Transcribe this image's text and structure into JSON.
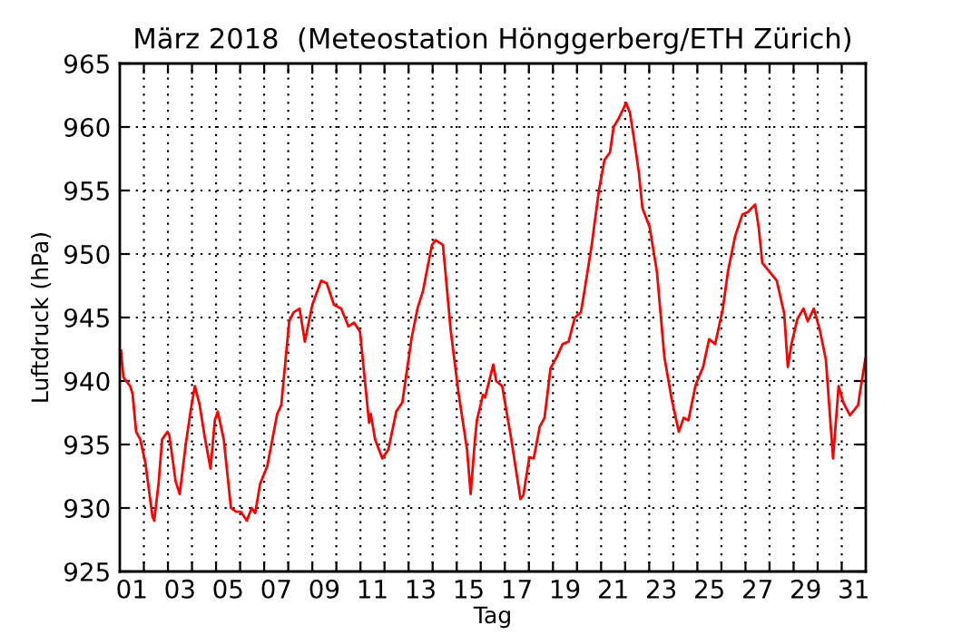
{
  "chart_data": {
    "type": "line",
    "title": "März 2018  (Meteostation Hönggerberg/ETH Zürich)",
    "xlabel": "Tag",
    "ylabel": "Luftdruck (hPa)",
    "xlim": [
      1,
      32
    ],
    "ylim": [
      925,
      965
    ],
    "yticks": [
      925,
      930,
      935,
      940,
      945,
      950,
      955,
      960,
      965
    ],
    "xticks": [
      {
        "value": 1.5,
        "label": "01"
      },
      {
        "value": 3.5,
        "label": "03"
      },
      {
        "value": 5.5,
        "label": "05"
      },
      {
        "value": 7.5,
        "label": "07"
      },
      {
        "value": 9.5,
        "label": "09"
      },
      {
        "value": 11.5,
        "label": "11"
      },
      {
        "value": 13.5,
        "label": "13"
      },
      {
        "value": 15.5,
        "label": "15"
      },
      {
        "value": 17.5,
        "label": "17"
      },
      {
        "value": 19.5,
        "label": "19"
      },
      {
        "value": 21.5,
        "label": "21"
      },
      {
        "value": 23.5,
        "label": "23"
      },
      {
        "value": 25.5,
        "label": "25"
      },
      {
        "value": 27.5,
        "label": "27"
      },
      {
        "value": 29.5,
        "label": "29"
      },
      {
        "value": 31.5,
        "label": "31"
      },
      {
        "value": 2,
        "label": null
      },
      {
        "value": 3,
        "label": null
      },
      {
        "value": 4,
        "label": null
      },
      {
        "value": 5,
        "label": null
      },
      {
        "value": 6,
        "label": null
      },
      {
        "value": 7,
        "label": null
      },
      {
        "value": 8,
        "label": null
      },
      {
        "value": 9,
        "label": null
      },
      {
        "value": 10,
        "label": null
      },
      {
        "value": 11,
        "label": null
      },
      {
        "value": 12,
        "label": null
      },
      {
        "value": 13,
        "label": null
      },
      {
        "value": 14,
        "label": null
      },
      {
        "value": 15,
        "label": null
      },
      {
        "value": 16,
        "label": null
      },
      {
        "value": 17,
        "label": null
      },
      {
        "value": 18,
        "label": null
      },
      {
        "value": 19,
        "label": null
      },
      {
        "value": 20,
        "label": null
      },
      {
        "value": 21,
        "label": null
      },
      {
        "value": 22,
        "label": null
      },
      {
        "value": 23,
        "label": null
      },
      {
        "value": 24,
        "label": null
      },
      {
        "value": 25,
        "label": null
      },
      {
        "value": 26,
        "label": null
      },
      {
        "value": 27,
        "label": null
      },
      {
        "value": 28,
        "label": null
      },
      {
        "value": 29,
        "label": null
      },
      {
        "value": 30,
        "label": null
      },
      {
        "value": 31,
        "label": null
      }
    ],
    "grid": true,
    "series": [
      {
        "color": "#ff0000",
        "x": [
          1.05,
          1.15,
          1.43,
          1.53,
          1.68,
          1.85,
          2.06,
          2.36,
          2.43,
          2.61,
          2.76,
          2.98,
          3.06,
          3.32,
          3.49,
          3.74,
          3.94,
          4.12,
          4.32,
          4.52,
          4.77,
          4.95,
          5.07,
          5.32,
          5.62,
          5.83,
          6.03,
          6.28,
          6.48,
          6.63,
          6.83,
          7.13,
          7.54,
          7.71,
          8.04,
          8.22,
          8.47,
          8.69,
          9.0,
          9.37,
          9.6,
          9.9,
          10.2,
          10.5,
          10.73,
          10.98,
          11.36,
          11.43,
          11.61,
          11.91,
          12.16,
          12.49,
          12.74,
          13.12,
          13.37,
          13.6,
          13.97,
          14.12,
          14.43,
          14.75,
          15.08,
          15.43,
          15.58,
          15.76,
          15.84,
          16.09,
          16.18,
          16.52,
          16.64,
          16.89,
          17.27,
          17.65,
          17.77,
          18.02,
          18.2,
          18.45,
          18.65,
          18.9,
          19.16,
          19.4,
          19.65,
          19.91,
          20.16,
          20.31,
          20.61,
          20.91,
          21.14,
          21.37,
          21.52,
          21.74,
          22.04,
          22.2,
          22.35,
          22.57,
          22.72,
          23.02,
          23.32,
          23.63,
          23.93,
          24.23,
          24.43,
          24.63,
          24.93,
          25.24,
          25.49,
          25.74,
          26.06,
          26.27,
          26.57,
          26.87,
          27.1,
          27.4,
          27.55,
          27.7,
          28.0,
          28.3,
          28.61,
          28.76,
          28.91,
          29.16,
          29.41,
          29.59,
          29.84,
          30.09,
          30.34,
          30.64,
          30.87,
          31.07,
          31.34,
          31.68,
          31.8,
          31.98
        ],
        "values": [
          942.4,
          940.3,
          939.6,
          939.0,
          936.0,
          935.4,
          933.6,
          929.3,
          929.0,
          931.9,
          935.4,
          936.0,
          935.7,
          932.1,
          931.1,
          935.0,
          937.6,
          939.6,
          938.1,
          935.7,
          933.1,
          936.9,
          937.6,
          935.4,
          930.0,
          929.7,
          929.7,
          929.0,
          930.0,
          929.6,
          931.9,
          933.3,
          937.4,
          938.1,
          944.7,
          945.4,
          945.7,
          943.1,
          946.0,
          947.9,
          947.7,
          946.0,
          945.7,
          944.3,
          944.6,
          943.9,
          936.7,
          937.4,
          935.4,
          933.9,
          934.6,
          937.6,
          938.3,
          943.3,
          945.7,
          947.1,
          950.7,
          951.1,
          950.7,
          944.0,
          939.0,
          934.6,
          931.1,
          935.4,
          936.9,
          938.9,
          938.7,
          941.3,
          940.0,
          939.6,
          935.4,
          930.7,
          931.0,
          934.0,
          933.9,
          936.4,
          937.1,
          941.0,
          941.9,
          942.9,
          943.1,
          945.0,
          945.4,
          947.1,
          950.7,
          955.0,
          957.4,
          958.0,
          960.0,
          960.7,
          961.9,
          961.1,
          959.3,
          956.4,
          953.6,
          952.1,
          948.6,
          941.9,
          938.6,
          936.0,
          937.1,
          936.9,
          939.7,
          941.1,
          943.3,
          942.9,
          945.7,
          948.6,
          951.4,
          953.1,
          953.3,
          953.9,
          952.1,
          949.3,
          948.6,
          947.9,
          945.3,
          941.1,
          942.9,
          944.9,
          945.7,
          944.7,
          945.7,
          944.0,
          941.7,
          933.9,
          939.6,
          938.3,
          937.3,
          938.1,
          939.6,
          941.7
        ]
      }
    ]
  }
}
